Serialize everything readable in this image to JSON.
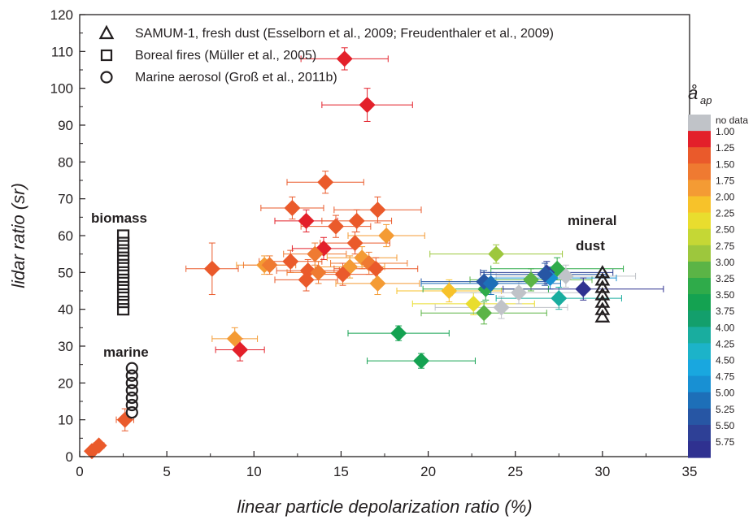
{
  "chart_data": {
    "type": "scatter",
    "xlabel": "linear particle depolarization ratio (%)",
    "ylabel": "lidar ratio (sr)",
    "xlim": [
      0,
      35
    ],
    "ylim": [
      0,
      120
    ],
    "xticks": [
      "0",
      "5",
      "10",
      "15",
      "20",
      "25",
      "30",
      "35"
    ],
    "yticks": [
      "0",
      "10",
      "20",
      "30",
      "40",
      "50",
      "60",
      "70",
      "80",
      "90",
      "100",
      "110",
      "120"
    ],
    "grid": false,
    "legend": {
      "placement": "top-left",
      "entries": [
        {
          "marker": "triangle",
          "label": "SAMUM-1, fresh dust (Esselborn et al., 2009; Freudenthaler et al., 2009)"
        },
        {
          "marker": "square",
          "label": "Boreal fires (Müller et al., 2005)"
        },
        {
          "marker": "circle",
          "label": "Marine aerosol (Groß et al., 2011b)"
        }
      ]
    },
    "annotations": [
      "biomass",
      "marine",
      "mineral",
      "dust"
    ],
    "colorbar": {
      "title": "å",
      "subscript": "ap",
      "nodata_label": "no data",
      "nodata_color": "#c0c3c8",
      "labels": [
        "1.00",
        "1.25",
        "1.50",
        "1.75",
        "2.00",
        "2.25",
        "2.50",
        "2.75",
        "3.00",
        "3.25",
        "3.50",
        "3.75",
        "4.00",
        "4.25",
        "4.50",
        "4.75",
        "5.00",
        "5.25",
        "5.50",
        "5.75"
      ],
      "colors": [
        "#e3202a",
        "#ea5a2b",
        "#ef7a31",
        "#f49b34",
        "#f7c22a",
        "#e9dd2e",
        "#c5d735",
        "#9dc73d",
        "#5bb446",
        "#2fab4a",
        "#14a251",
        "#139f6c",
        "#19ad9f",
        "#1cb3c9",
        "#19a7df",
        "#1890d3",
        "#1d6fb8",
        "#2756a4",
        "#2e4096",
        "#2f3190"
      ]
    },
    "reference_sets": [
      {
        "name": "SAMUM-1, fresh dust",
        "marker": "triangle",
        "points": [
          {
            "x": 30,
            "y": 38
          },
          {
            "x": 30,
            "y": 40
          },
          {
            "x": 30,
            "y": 42
          },
          {
            "x": 30,
            "y": 44
          },
          {
            "x": 30,
            "y": 46
          },
          {
            "x": 30,
            "y": 48
          },
          {
            "x": 30,
            "y": 50
          }
        ]
      },
      {
        "name": "Boreal fires",
        "marker": "square",
        "points": [
          {
            "x": 2.5,
            "y": 40
          },
          {
            "x": 2.5,
            "y": 42
          },
          {
            "x": 2.5,
            "y": 44
          },
          {
            "x": 2.5,
            "y": 46
          },
          {
            "x": 2.5,
            "y": 48
          },
          {
            "x": 2.5,
            "y": 50
          },
          {
            "x": 2.5,
            "y": 52
          },
          {
            "x": 2.5,
            "y": 54
          },
          {
            "x": 2.5,
            "y": 56
          },
          {
            "x": 2.5,
            "y": 58
          },
          {
            "x": 2.5,
            "y": 60
          }
        ]
      },
      {
        "name": "Marine aerosol",
        "marker": "circle",
        "points": [
          {
            "x": 3,
            "y": 12
          },
          {
            "x": 3,
            "y": 14
          },
          {
            "x": 3,
            "y": 16
          },
          {
            "x": 3,
            "y": 18
          },
          {
            "x": 3,
            "y": 20
          },
          {
            "x": 3,
            "y": 22
          },
          {
            "x": 3,
            "y": 24
          }
        ]
      }
    ],
    "points": [
      {
        "x": 15.2,
        "y": 108,
        "xerr": 2.5,
        "yerr": 3,
        "color": "#e3202a"
      },
      {
        "x": 16.5,
        "y": 95.5,
        "xerr": 2.6,
        "yerr": 4.5,
        "color": "#e3202a"
      },
      {
        "x": 14.1,
        "y": 74.5,
        "xerr": 2.2,
        "yerr": 3,
        "color": "#ea5a2b"
      },
      {
        "x": 12.2,
        "y": 67.5,
        "xerr": 1.8,
        "yerr": 3,
        "color": "#ea5a2b"
      },
      {
        "x": 13,
        "y": 64,
        "xerr": 1.8,
        "yerr": 3,
        "color": "#e3202a"
      },
      {
        "x": 15.9,
        "y": 64,
        "xerr": 2,
        "yerr": 3,
        "color": "#ea5a2b"
      },
      {
        "x": 17.1,
        "y": 67,
        "xerr": 2.5,
        "yerr": 3.5,
        "color": "#ea5a2b"
      },
      {
        "x": 14.7,
        "y": 62.5,
        "xerr": 2,
        "yerr": 3,
        "color": "#ea5a2b"
      },
      {
        "x": 17.6,
        "y": 60,
        "xerr": 2.2,
        "yerr": 3,
        "color": "#f49b34"
      },
      {
        "x": 15.8,
        "y": 58,
        "xerr": 2,
        "yerr": 3,
        "color": "#ea5a2b"
      },
      {
        "x": 14,
        "y": 56.5,
        "xerr": 1.8,
        "yerr": 3,
        "color": "#e3202a"
      },
      {
        "x": 13.5,
        "y": 55,
        "xerr": 1.8,
        "yerr": 3,
        "color": "#ef7a31"
      },
      {
        "x": 16.2,
        "y": 54,
        "xerr": 2,
        "yerr": 3,
        "color": "#f49b34"
      },
      {
        "x": 16.6,
        "y": 52.5,
        "xerr": 2.2,
        "yerr": 3,
        "color": "#ef7a31"
      },
      {
        "x": 15.5,
        "y": 51.5,
        "xerr": 2,
        "yerr": 3,
        "color": "#f49b34"
      },
      {
        "x": 12.1,
        "y": 53,
        "xerr": 1.8,
        "yerr": 3,
        "color": "#ea5a2b"
      },
      {
        "x": 10.6,
        "y": 52,
        "xerr": 1.6,
        "yerr": 2.5,
        "color": "#f49b34"
      },
      {
        "x": 10.9,
        "y": 52,
        "xerr": 1.5,
        "yerr": 2.5,
        "color": "#ef7a31"
      },
      {
        "x": 7.6,
        "y": 51,
        "xerr": 1.5,
        "yerr": 7,
        "color": "#ea5a2b"
      },
      {
        "x": 13.1,
        "y": 50.5,
        "xerr": 1.8,
        "yerr": 3,
        "color": "#ea5a2b"
      },
      {
        "x": 13.7,
        "y": 50,
        "xerr": 1.8,
        "yerr": 3,
        "color": "#ef7a31"
      },
      {
        "x": 17,
        "y": 51,
        "xerr": 2.4,
        "yerr": 3,
        "color": "#ea5a2b"
      },
      {
        "x": 15.1,
        "y": 49.5,
        "xerr": 2,
        "yerr": 3,
        "color": "#ea5a2b"
      },
      {
        "x": 13,
        "y": 48,
        "xerr": 1.8,
        "yerr": 3,
        "color": "#ea5a2b"
      },
      {
        "x": 17.1,
        "y": 47,
        "xerr": 2.4,
        "yerr": 3,
        "color": "#f49b34"
      },
      {
        "x": 8.9,
        "y": 32,
        "xerr": 1.3,
        "yerr": 3,
        "color": "#f49b34"
      },
      {
        "x": 9.2,
        "y": 29,
        "xerr": 1.4,
        "yerr": 3,
        "color": "#e3202a"
      },
      {
        "x": 2.6,
        "y": 10,
        "xerr": 0.5,
        "yerr": 3,
        "color": "#ea5a2b"
      },
      {
        "x": 1.1,
        "y": 3,
        "xerr": 0.3,
        "yerr": 1,
        "color": "#ea5a2b"
      },
      {
        "x": 0.7,
        "y": 1.5,
        "xerr": 0.2,
        "yerr": 0.5,
        "color": "#ea5a2b"
      },
      {
        "x": 23.9,
        "y": 55,
        "xerr": 3.8,
        "yerr": 2.5,
        "color": "#9dc73d"
      },
      {
        "x": 21.2,
        "y": 45,
        "xerr": 3,
        "yerr": 3,
        "color": "#f7c22a"
      },
      {
        "x": 22.6,
        "y": 41.5,
        "xerr": 3.5,
        "yerr": 3,
        "color": "#e9dd2e"
      },
      {
        "x": 23.2,
        "y": 39,
        "xerr": 3.6,
        "yerr": 3,
        "color": "#5bb446"
      },
      {
        "x": 24.2,
        "y": 40.5,
        "xerr": 3.8,
        "yerr": 3,
        "color": "#c0c3c8"
      },
      {
        "x": 25.2,
        "y": 44.5,
        "xerr": 3.8,
        "yerr": 3,
        "color": "#c0c3c8"
      },
      {
        "x": 23.3,
        "y": 45.5,
        "xerr": 3.6,
        "yerr": 3,
        "color": "#2fab4a"
      },
      {
        "x": 25.9,
        "y": 48,
        "xerr": 3.5,
        "yerr": 3,
        "color": "#5bb446"
      },
      {
        "x": 27.4,
        "y": 51,
        "xerr": 3.8,
        "yerr": 3,
        "color": "#2fab4a"
      },
      {
        "x": 27.5,
        "y": 43,
        "xerr": 3.6,
        "yerr": 3,
        "color": "#19ad9f"
      },
      {
        "x": 27.9,
        "y": 49,
        "xerr": 4,
        "yerr": 3,
        "color": "#c0c3c8"
      },
      {
        "x": 23.2,
        "y": 47.5,
        "xerr": 3.6,
        "yerr": 3,
        "color": "#2756a4"
      },
      {
        "x": 23.6,
        "y": 47,
        "xerr": 4,
        "yerr": 3,
        "color": "#1d6fb8"
      },
      {
        "x": 26.8,
        "y": 50,
        "xerr": 3.8,
        "yerr": 3,
        "color": "#2e4096"
      },
      {
        "x": 27,
        "y": 48.5,
        "xerr": 3.8,
        "yerr": 3,
        "color": "#1890d3"
      },
      {
        "x": 26.7,
        "y": 49.5,
        "xerr": 3.5,
        "yerr": 3,
        "color": "#2756a4"
      },
      {
        "x": 28.9,
        "y": 45.5,
        "xerr": 4.6,
        "yerr": 3,
        "color": "#2f3190"
      },
      {
        "x": 18.3,
        "y": 33.5,
        "xerr": 2.9,
        "yerr": 2,
        "color": "#14a251"
      },
      {
        "x": 19.6,
        "y": 26,
        "xerr": 3.1,
        "yerr": 2,
        "color": "#14a251"
      }
    ]
  }
}
